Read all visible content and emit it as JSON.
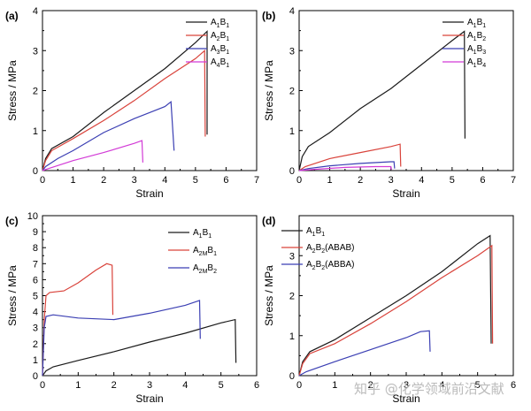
{
  "watermark": "知乎 @化学领域前沿文献",
  "chart_data": [
    {
      "type": "line",
      "panel_label": "(a)",
      "xlabel": "Strain",
      "ylabel": "Stress / MPa",
      "xlim": [
        0,
        7
      ],
      "ylim": [
        0,
        4
      ],
      "xticks": [
        0,
        1,
        2,
        3,
        4,
        5,
        6,
        7
      ],
      "yticks": [
        0,
        1,
        2,
        3,
        4
      ],
      "legend_position": "top-right",
      "series": [
        {
          "legend": [
            "A",
            "1",
            "B",
            "1"
          ],
          "color": "#1a1a1a",
          "points": [
            [
              0,
              0
            ],
            [
              0.1,
              0.3
            ],
            [
              0.3,
              0.55
            ],
            [
              1,
              0.85
            ],
            [
              2,
              1.45
            ],
            [
              3,
              2.0
            ],
            [
              4,
              2.55
            ],
            [
              5,
              3.2
            ],
            [
              5.38,
              3.48
            ],
            [
              5.38,
              0.9
            ]
          ]
        },
        {
          "legend": [
            "A",
            "2",
            "B",
            "1"
          ],
          "color": "#d9433b",
          "points": [
            [
              0,
              0
            ],
            [
              0.1,
              0.25
            ],
            [
              0.3,
              0.5
            ],
            [
              1,
              0.8
            ],
            [
              2,
              1.25
            ],
            [
              3,
              1.75
            ],
            [
              4,
              2.3
            ],
            [
              5,
              2.8
            ],
            [
              5.3,
              3.0
            ],
            [
              5.32,
              0.85
            ]
          ]
        },
        {
          "legend": [
            "A",
            "3",
            "B",
            "1"
          ],
          "color": "#3b3fb3",
          "points": [
            [
              0,
              0
            ],
            [
              0.1,
              0.1
            ],
            [
              0.5,
              0.3
            ],
            [
              1,
              0.5
            ],
            [
              2,
              0.95
            ],
            [
              3,
              1.3
            ],
            [
              4,
              1.6
            ],
            [
              4.2,
              1.72
            ],
            [
              4.3,
              0.5
            ]
          ]
        },
        {
          "legend": [
            "A",
            "4",
            "B",
            "1"
          ],
          "color": "#d23ad6",
          "points": [
            [
              0,
              0
            ],
            [
              0.2,
              0.05
            ],
            [
              1,
              0.25
            ],
            [
              2,
              0.45
            ],
            [
              3,
              0.68
            ],
            [
              3.25,
              0.75
            ],
            [
              3.28,
              0.2
            ]
          ]
        }
      ]
    },
    {
      "type": "line",
      "panel_label": "(b)",
      "xlabel": "Strain",
      "ylabel": "Stress / MPa",
      "xlim": [
        0,
        7
      ],
      "ylim": [
        0,
        4
      ],
      "xticks": [
        0,
        1,
        2,
        3,
        4,
        5,
        6,
        7
      ],
      "yticks": [
        0,
        1,
        2,
        3,
        4
      ],
      "legend_position": "top-right",
      "series": [
        {
          "legend": [
            "A",
            "1",
            "B",
            "1"
          ],
          "color": "#1a1a1a",
          "points": [
            [
              0,
              0
            ],
            [
              0.1,
              0.35
            ],
            [
              0.3,
              0.6
            ],
            [
              1,
              0.95
            ],
            [
              2,
              1.55
            ],
            [
              3,
              2.05
            ],
            [
              4,
              2.65
            ],
            [
              5,
              3.25
            ],
            [
              5.4,
              3.48
            ],
            [
              5.42,
              0.8
            ]
          ]
        },
        {
          "legend": [
            "A",
            "1",
            "B",
            "2"
          ],
          "color": "#d9433b",
          "points": [
            [
              0,
              0
            ],
            [
              0.2,
              0.1
            ],
            [
              1,
              0.3
            ],
            [
              2,
              0.45
            ],
            [
              3,
              0.6
            ],
            [
              3.3,
              0.66
            ],
            [
              3.32,
              0.1
            ]
          ]
        },
        {
          "legend": [
            "A",
            "1",
            "B",
            "3"
          ],
          "color": "#3b3fb3",
          "points": [
            [
              0,
              0
            ],
            [
              0.3,
              0.05
            ],
            [
              1,
              0.12
            ],
            [
              2,
              0.18
            ],
            [
              3,
              0.22
            ],
            [
              3.1,
              0.22
            ],
            [
              3.12,
              0.05
            ]
          ]
        },
        {
          "legend": [
            "A",
            "1",
            "B",
            "4"
          ],
          "color": "#d23ad6",
          "points": [
            [
              0,
              0
            ],
            [
              0.5,
              0.03
            ],
            [
              1.5,
              0.08
            ],
            [
              2.5,
              0.1
            ],
            [
              3.0,
              0.1
            ],
            [
              3.02,
              0.02
            ]
          ]
        }
      ]
    },
    {
      "type": "line",
      "panel_label": "(c)",
      "xlabel": "Strain",
      "ylabel": "Stress / MPa",
      "xlim": [
        0,
        6
      ],
      "ylim": [
        0,
        10
      ],
      "xticks": [
        0,
        1,
        2,
        3,
        4,
        5,
        6
      ],
      "yticks": [
        0,
        1,
        2,
        3,
        4,
        5,
        6,
        7,
        8,
        9,
        10
      ],
      "legend_position": "top-right",
      "series": [
        {
          "legend": [
            "A",
            "1",
            "B",
            "1"
          ],
          "color": "#1a1a1a",
          "points": [
            [
              0,
              0
            ],
            [
              0.1,
              0.3
            ],
            [
              0.3,
              0.55
            ],
            [
              1,
              0.95
            ],
            [
              2,
              1.5
            ],
            [
              3,
              2.1
            ],
            [
              4,
              2.65
            ],
            [
              5,
              3.3
            ],
            [
              5.4,
              3.5
            ],
            [
              5.42,
              0.8
            ]
          ]
        },
        {
          "legend": [
            "A",
            "2M",
            "B",
            "1"
          ],
          "color": "#d9433b",
          "points": [
            [
              0,
              0
            ],
            [
              0.05,
              3.5
            ],
            [
              0.1,
              5.0
            ],
            [
              0.2,
              5.2
            ],
            [
              0.6,
              5.3
            ],
            [
              1.0,
              5.8
            ],
            [
              1.5,
              6.6
            ],
            [
              1.8,
              7.0
            ],
            [
              1.95,
              6.9
            ],
            [
              1.97,
              3.8
            ]
          ]
        },
        {
          "legend": [
            "A",
            "2M",
            "B",
            "2"
          ],
          "color": "#3b3fb3",
          "points": [
            [
              0,
              0
            ],
            [
              0.05,
              3.0
            ],
            [
              0.1,
              3.7
            ],
            [
              0.3,
              3.8
            ],
            [
              1,
              3.6
            ],
            [
              2,
              3.5
            ],
            [
              3,
              3.9
            ],
            [
              4,
              4.4
            ],
            [
              4.4,
              4.7
            ],
            [
              4.42,
              2.3
            ]
          ]
        }
      ]
    },
    {
      "type": "line",
      "panel_label": "(d)",
      "xlabel": "Strain",
      "ylabel": "Stress / MPa",
      "xlim": [
        0,
        6
      ],
      "ylim": [
        0,
        4
      ],
      "xticks": [
        0,
        1,
        2,
        3,
        4,
        5,
        6
      ],
      "yticks": [
        0,
        1,
        2,
        3
      ],
      "legend_position": "top-left",
      "series": [
        {
          "legend": [
            "A",
            "1",
            "B",
            "1"
          ],
          "color": "#1a1a1a",
          "points": [
            [
              0,
              0
            ],
            [
              0.1,
              0.35
            ],
            [
              0.3,
              0.6
            ],
            [
              1,
              0.9
            ],
            [
              2,
              1.45
            ],
            [
              3,
              2.0
            ],
            [
              4,
              2.6
            ],
            [
              5,
              3.3
            ],
            [
              5.35,
              3.5
            ],
            [
              5.38,
              0.8
            ]
          ]
        },
        {
          "legend": [
            "A",
            "2",
            "B",
            "2",
            "(ABAB)"
          ],
          "color": "#d9433b",
          "points": [
            [
              0,
              0
            ],
            [
              0.1,
              0.3
            ],
            [
              0.3,
              0.55
            ],
            [
              1,
              0.8
            ],
            [
              2,
              1.3
            ],
            [
              3,
              1.85
            ],
            [
              4,
              2.45
            ],
            [
              5,
              3.0
            ],
            [
              5.4,
              3.25
            ],
            [
              5.42,
              0.8
            ]
          ]
        },
        {
          "legend": [
            "A",
            "2",
            "B",
            "2",
            "(ABBA)"
          ],
          "color": "#3b3fb3",
          "points": [
            [
              0,
              0
            ],
            [
              0.2,
              0.1
            ],
            [
              1,
              0.35
            ],
            [
              2,
              0.65
            ],
            [
              3,
              0.95
            ],
            [
              3.4,
              1.1
            ],
            [
              3.65,
              1.12
            ],
            [
              3.67,
              0.6
            ]
          ]
        }
      ]
    }
  ]
}
